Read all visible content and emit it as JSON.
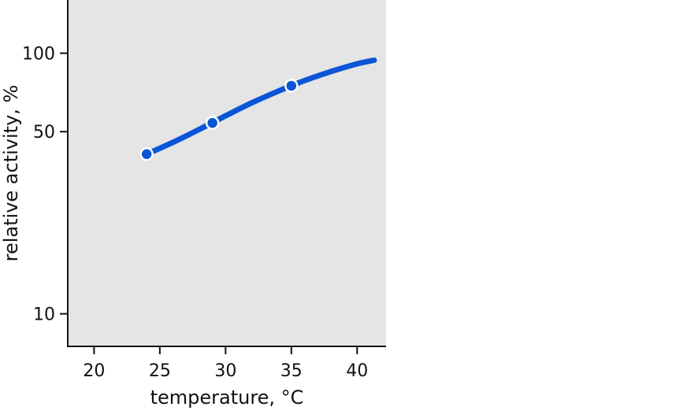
{
  "chart_data": {
    "type": "line",
    "xlabel": "temperature, °C",
    "ylabel": "relative activity, %",
    "x_ticks": [
      20,
      25,
      30,
      35,
      40
    ],
    "y_ticks": [
      10,
      50,
      100
    ],
    "y_scale": "log",
    "xlim": [
      18,
      42.2
    ],
    "ylim": [
      7.5,
      160
    ],
    "grid": false,
    "colors": {
      "plot_background": "#e5e5e5",
      "line": "#0a56d6",
      "marker_edge": "#ffffff"
    },
    "series": [
      {
        "curve_x": [
          24,
          26,
          28,
          30,
          32,
          34,
          36,
          38,
          40,
          41.3
        ],
        "curve_y": [
          41,
          45.5,
          51,
          57.5,
          64.5,
          71.5,
          78.5,
          85,
          91,
          94
        ],
        "markers_x": [
          24,
          29,
          35
        ],
        "markers_y": [
          41,
          54,
          75
        ]
      }
    ]
  }
}
